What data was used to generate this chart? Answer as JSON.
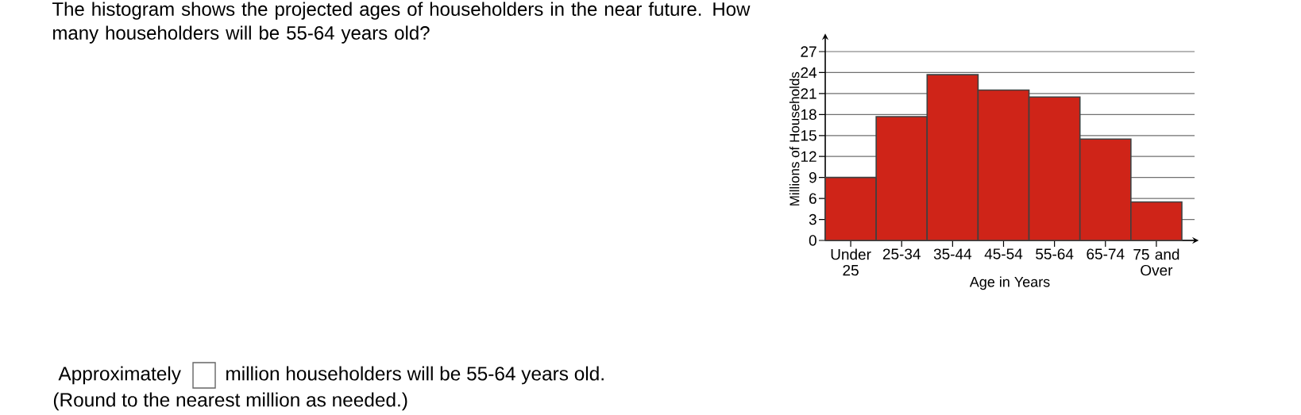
{
  "chart_data": {
    "type": "bar",
    "title": "The histogram shows the projected ages of householders in the near future. How many householders will be 55-64 years old?",
    "xlabel": "Age in Years",
    "ylabel": "Millions of Households",
    "categories": [
      "Under 25",
      "25-34",
      "35-44",
      "45-54",
      "55-64",
      "65-74",
      "75 and Over"
    ],
    "values": [
      9,
      17.7,
      23.7,
      21.5,
      20.5,
      14.5,
      5.5
    ],
    "color": "#cf2418",
    "ylim": [
      0,
      29
    ],
    "yticks": [
      0,
      3,
      6,
      9,
      12,
      15,
      18,
      21,
      24,
      27
    ],
    "grid": "y",
    "annotations": [
      "Approximately",
      "million householders will be 55-64 years old.",
      "(Round to the nearest million as needed.)"
    ]
  }
}
